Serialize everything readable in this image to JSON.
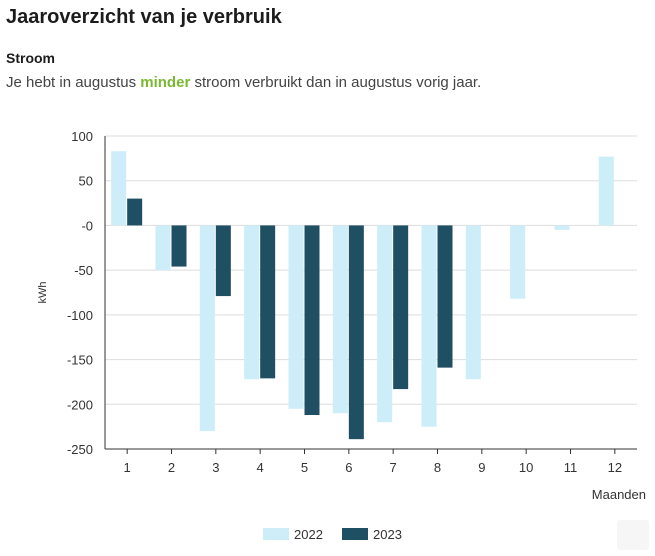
{
  "page": {
    "title": "Jaaroverzicht van je verbruik",
    "section": "Stroom",
    "message_prefix": "Je hebt in augustus ",
    "message_highlight": "minder",
    "message_suffix": " stroom verbruikt dan in augustus vorig jaar."
  },
  "colors": {
    "highlight": "#7ab833",
    "series_2022": "#cdeef8",
    "series_2023": "#1f4f63",
    "grid": "#dddddd"
  },
  "chart_data": {
    "type": "bar",
    "categories": [
      "1",
      "2",
      "3",
      "4",
      "5",
      "6",
      "7",
      "8",
      "9",
      "10",
      "11",
      "12"
    ],
    "series": [
      {
        "name": "2022",
        "values": [
          83,
          -50,
          -230,
          -172,
          -205,
          -210,
          -220,
          -225,
          -172,
          -82,
          -5,
          77
        ]
      },
      {
        "name": "2023",
        "values": [
          30,
          -46,
          -79,
          -171,
          -212,
          -239,
          -183,
          -159,
          null,
          null,
          null,
          null
        ]
      }
    ],
    "ylabel": "kWh",
    "xlabel": "Maanden",
    "ylim": [
      -250,
      100
    ],
    "yticks": [
      100,
      50,
      0,
      -50,
      -100,
      -150,
      -200,
      -250
    ],
    "ytick_labels": [
      "100",
      "50",
      "-0",
      "-50",
      "-100",
      "-150",
      "-200",
      "-250"
    ],
    "grid": true,
    "legend": "bottom-center"
  }
}
